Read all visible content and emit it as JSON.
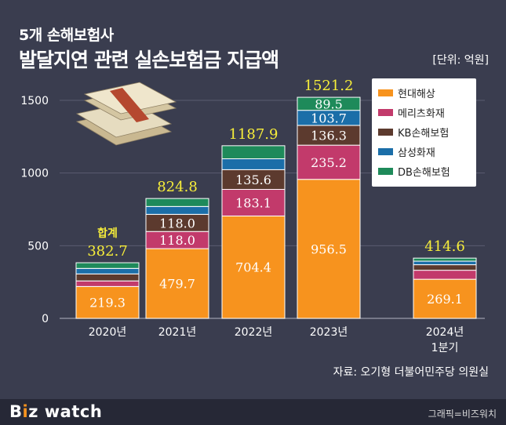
{
  "title": {
    "line1": "5개 손해보험사",
    "line2": "발달지연 관련 실손보험금 지급액"
  },
  "unit": "[단위: 억원]",
  "source": "자료: 오기형 더불어민주당 의원실",
  "footer": {
    "logo_main": "B",
    "logo_accent": "i",
    "logo_z": "z",
    "logo_rest": " watch",
    "credit": "그래픽=비즈워치"
  },
  "total_prefix": "합계",
  "illustration": "money-stack-icon",
  "colors": {
    "background": "#3a3d4f",
    "total_label": "#f7ee3a"
  },
  "chart_data": {
    "type": "bar",
    "stacked": true,
    "categories": [
      "2020년",
      "2021년",
      "2022년",
      "2023년",
      "2024년\n1분기"
    ],
    "ylim": [
      0,
      1500
    ],
    "yticks": [
      0,
      500,
      1000,
      1500
    ],
    "series": [
      {
        "name": "현대해상",
        "color": "#f7931e",
        "values": [
          219.3,
          479.7,
          704.4,
          956.5,
          269.1
        ],
        "labels": [
          "219.3",
          "479.7",
          "704.4",
          "956.5",
          "269.1"
        ]
      },
      {
        "name": "메리츠화재",
        "color": "#c23a6b",
        "values": [
          38.4,
          118.0,
          183.1,
          235.2,
          62.0
        ],
        "labels": [
          "",
          "118.0",
          "183.1",
          "235.2",
          ""
        ]
      },
      {
        "name": "KB손해보험",
        "color": "#5c3a2e",
        "values": [
          48.0,
          118.0,
          135.6,
          136.3,
          38.0
        ],
        "labels": [
          "",
          "118.0",
          "135.6",
          "136.3",
          ""
        ]
      },
      {
        "name": "삼성화재",
        "color": "#1b6ea8",
        "values": [
          38.0,
          54.1,
          75.0,
          103.7,
          24.5
        ],
        "labels": [
          "",
          "",
          "",
          "103.7",
          ""
        ]
      },
      {
        "name": "DB손해보험",
        "color": "#1e8a5a",
        "values": [
          39.0,
          55.0,
          89.8,
          89.5,
          21.0
        ],
        "labels": [
          "",
          "",
          "",
          "89.5",
          ""
        ]
      }
    ],
    "totals": [
      "382.7",
      "824.8",
      "1187.9",
      "1521.2",
      "414.6"
    ],
    "legend_position": "top-right",
    "grid": true
  }
}
